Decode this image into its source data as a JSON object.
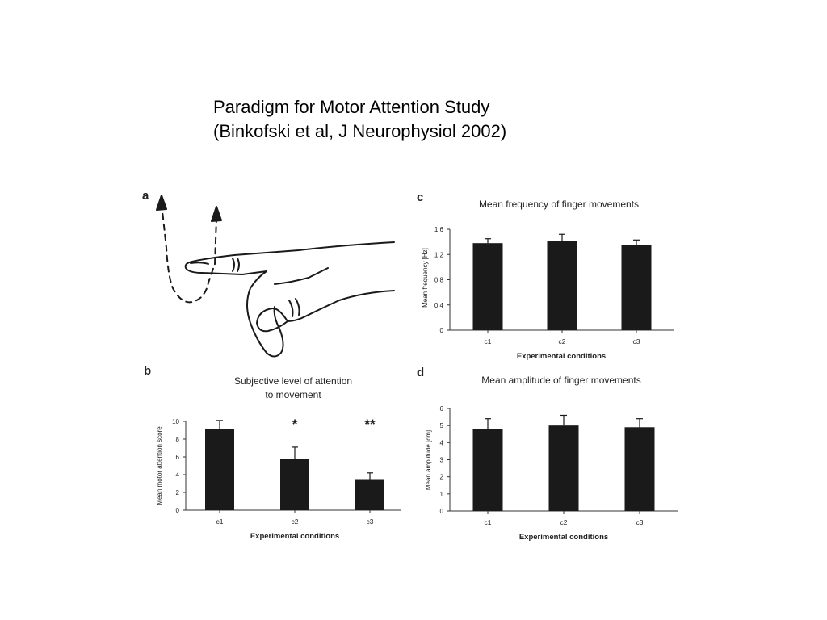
{
  "slide": {
    "title_line1": "Paradigm for Motor Attention Study",
    "title_line2": "(Binkofski et al, J Neurophysiol 2002)"
  },
  "panels": {
    "a": "a",
    "b": "b",
    "c": "c",
    "d": "d"
  },
  "colors": {
    "bar": "#1a1a1a",
    "axis": "#333333",
    "text": "#222222"
  },
  "chart_data": [
    {
      "id": "b",
      "type": "bar",
      "title": "Subjective level of attention to movement",
      "title_lines": [
        "Subjective level of attention",
        "to movement"
      ],
      "categories": [
        "c1",
        "c2",
        "c3"
      ],
      "values": [
        9.1,
        5.8,
        3.5
      ],
      "errors": [
        1.0,
        1.3,
        0.7
      ],
      "annotations": [
        "",
        "*",
        "**"
      ],
      "xlabel": "Experimental conditions",
      "ylabel": "Mean motor attention score",
      "ylim": [
        0,
        10
      ],
      "yticks": [
        "0",
        "2",
        "4",
        "6",
        "8",
        "10"
      ],
      "ytick_values": [
        0,
        2,
        4,
        6,
        8,
        10
      ],
      "grid": false
    },
    {
      "id": "c",
      "type": "bar",
      "title": "Mean frequency of finger movements",
      "title_lines": [
        "Mean frequency of finger movements"
      ],
      "categories": [
        "c1",
        "c2",
        "c3"
      ],
      "values": [
        1.38,
        1.42,
        1.35
      ],
      "errors": [
        0.07,
        0.1,
        0.08
      ],
      "annotations": [
        "",
        "",
        ""
      ],
      "xlabel": "Experimental conditions",
      "ylabel": "Mean frequency [Hz]",
      "ylim": [
        0,
        1.6
      ],
      "yticks": [
        "0",
        "0,4",
        "0,8",
        "1,2",
        "1,6"
      ],
      "ytick_values": [
        0,
        0.4,
        0.8,
        1.2,
        1.6
      ],
      "grid": false
    },
    {
      "id": "d",
      "type": "bar",
      "title": "Mean amplitude of finger movements",
      "title_lines": [
        "Mean amplitude of finger movements"
      ],
      "categories": [
        "c1",
        "c2",
        "c3"
      ],
      "values": [
        4.8,
        5.0,
        4.9
      ],
      "errors": [
        0.6,
        0.6,
        0.5
      ],
      "annotations": [
        "",
        "",
        ""
      ],
      "xlabel": "Experimental conditions",
      "ylabel": "Mean amplitude [cm]",
      "ylim": [
        0,
        6
      ],
      "yticks": [
        "0",
        "1",
        "2",
        "3",
        "4",
        "5",
        "6"
      ],
      "ytick_values": [
        0,
        1,
        2,
        3,
        4,
        5,
        6
      ],
      "grid": false
    }
  ]
}
